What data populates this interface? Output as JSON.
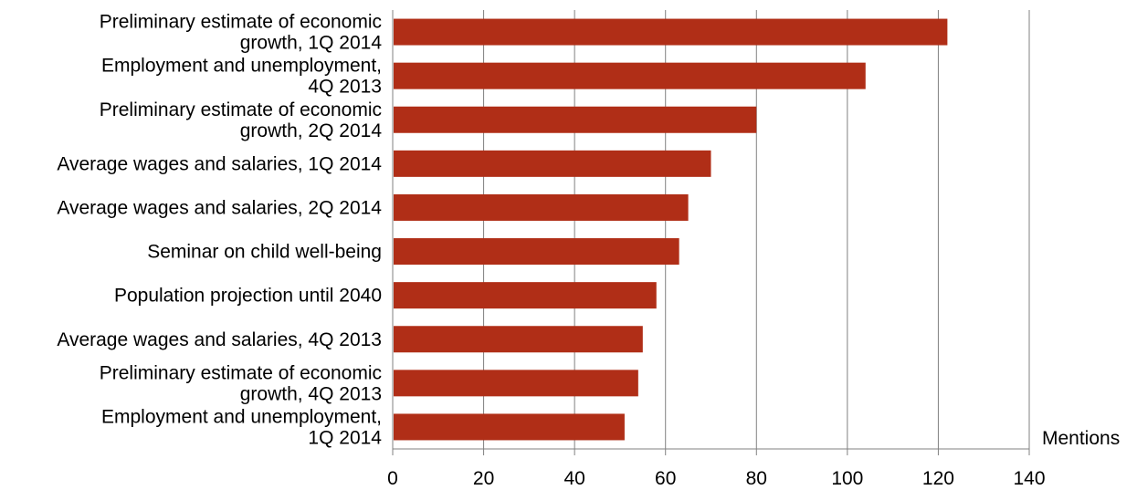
{
  "chart_data": {
    "type": "bar",
    "orientation": "horizontal",
    "categories": [
      [
        "Preliminary estimate of economic",
        "growth, 1Q 2014"
      ],
      [
        "Employment and unemployment,",
        "4Q 2013"
      ],
      [
        "Preliminary estimate of economic",
        "growth, 2Q 2014"
      ],
      [
        "Average wages and salaries, 1Q 2014"
      ],
      [
        "Average wages and salaries, 2Q 2014"
      ],
      [
        "Seminar on child well-being"
      ],
      [
        "Population projection until 2040"
      ],
      [
        "Average wages and salaries, 4Q 2013"
      ],
      [
        "Preliminary estimate of economic",
        "growth, 4Q 2013"
      ],
      [
        "Employment and unemployment,",
        "1Q 2014"
      ]
    ],
    "values": [
      122,
      104,
      80,
      70,
      65,
      63,
      58,
      55,
      54,
      51
    ],
    "xlabel": "Mentions",
    "xlim": [
      0,
      140
    ],
    "xticks": [
      0,
      20,
      40,
      60,
      80,
      100,
      120,
      140
    ],
    "grid": true,
    "colors": {
      "bar": "#b02e17",
      "grid": "#808080",
      "axis": "#808080"
    }
  }
}
